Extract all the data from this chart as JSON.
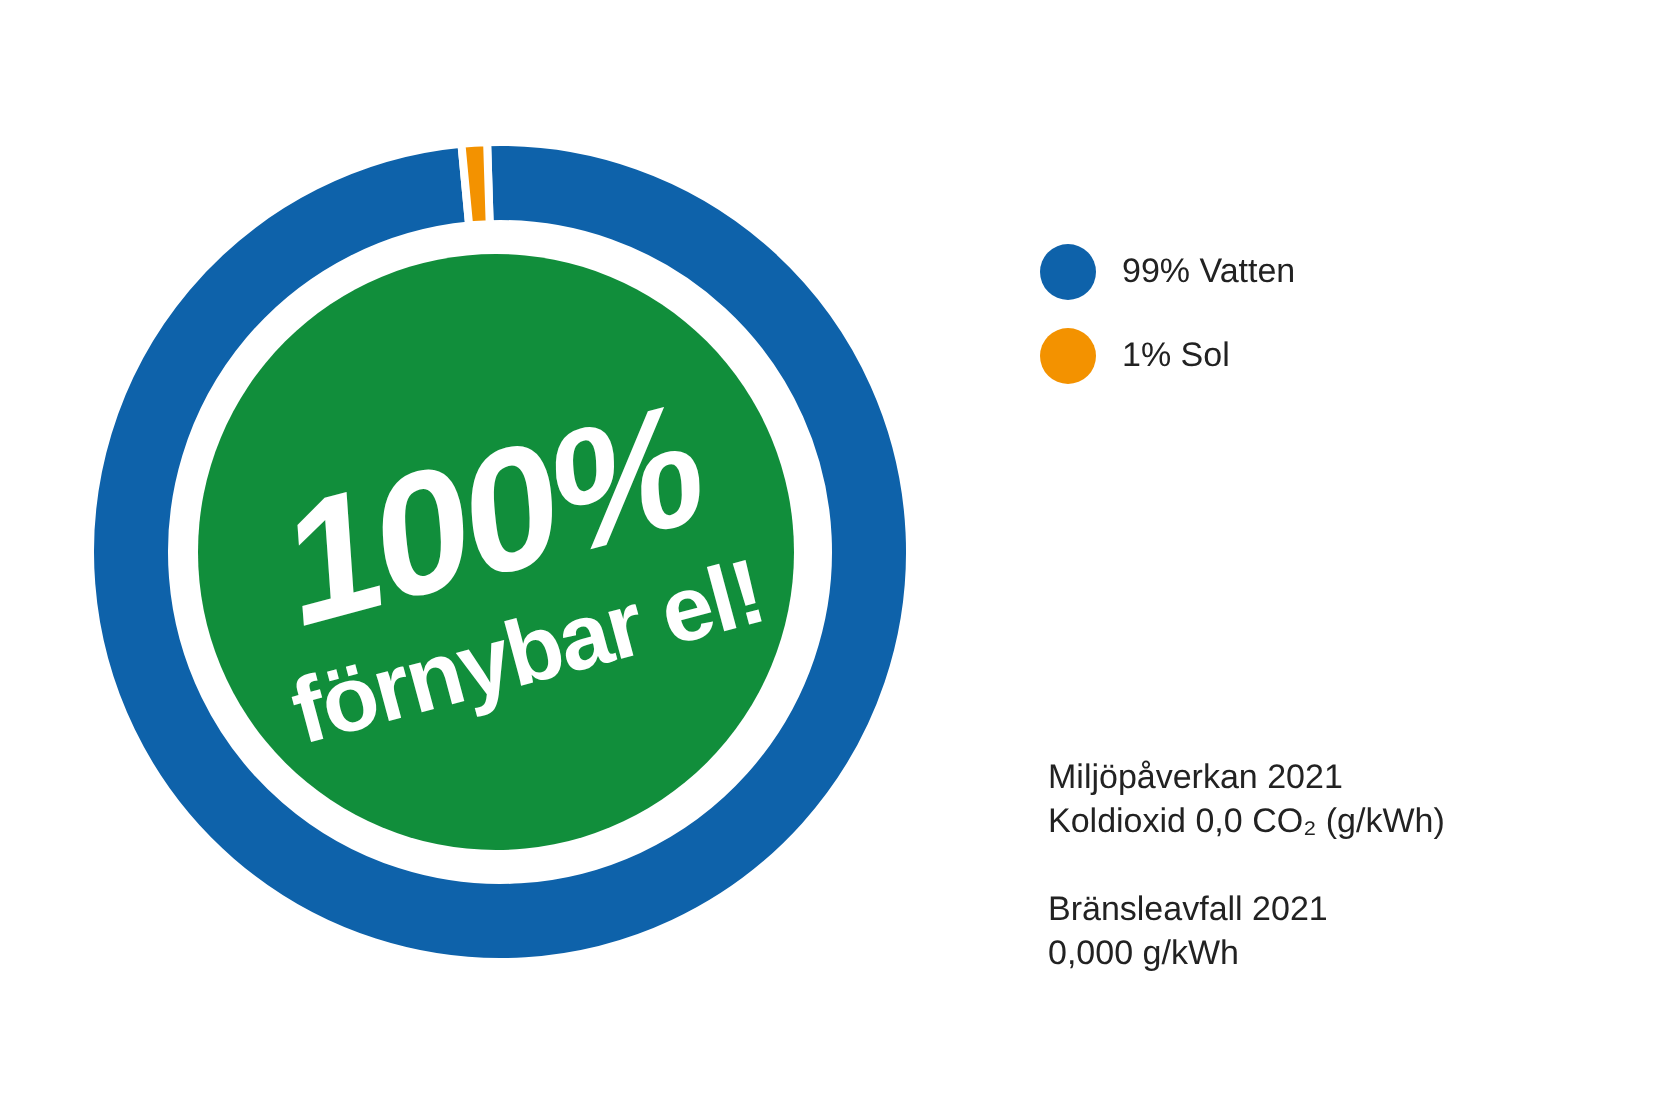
{
  "chart_data": {
    "type": "donut",
    "title": "100% förnybar el!",
    "categories": [
      "99% Vatten",
      "1% Sol"
    ],
    "values": [
      99,
      1
    ],
    "colors": [
      "#0e62aa",
      "#f39200"
    ],
    "legend": "right",
    "annotations": [
      "Miljöpåverkan 2021",
      "Koldioxid 0,0 CO₂ (g/kWh)",
      "Bränsleavfall 2021",
      "0,000 g/kWh"
    ]
  }
}
